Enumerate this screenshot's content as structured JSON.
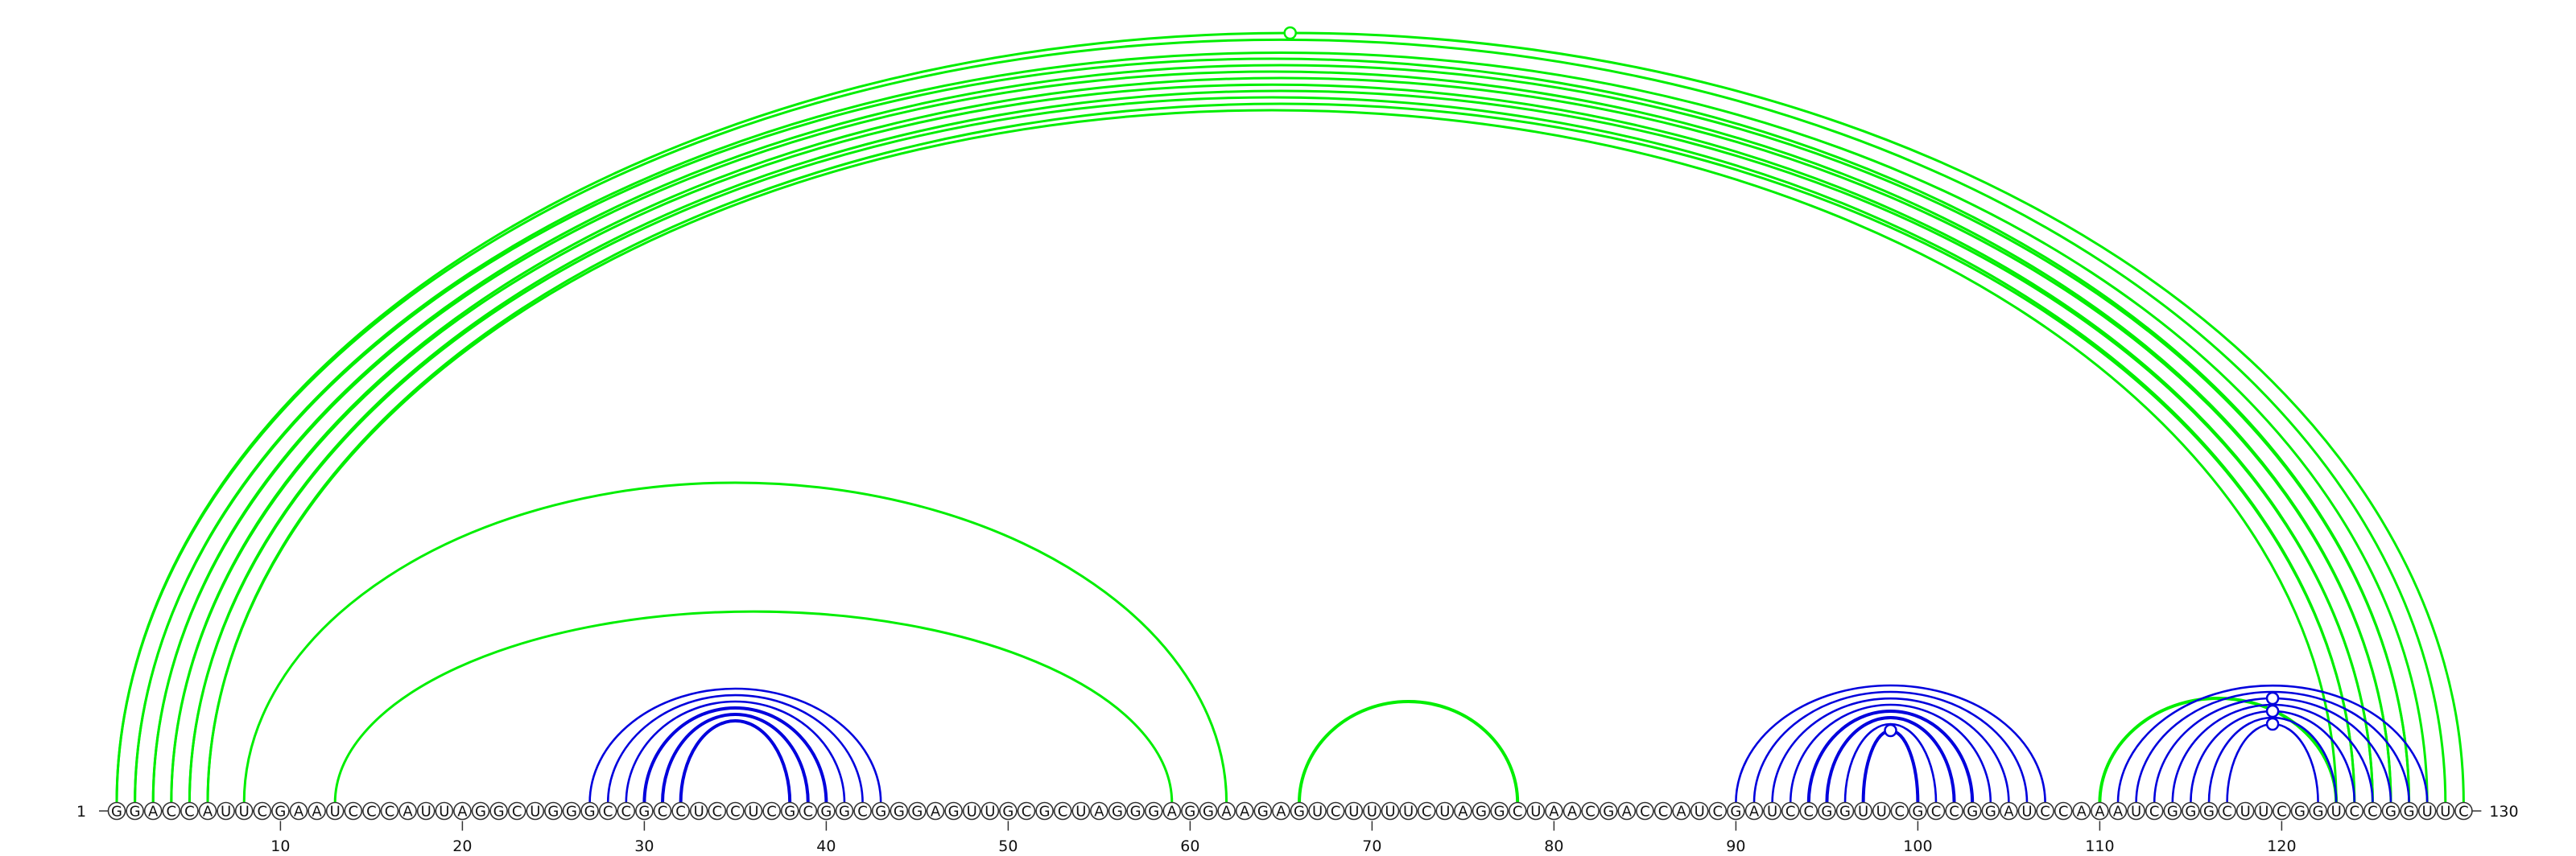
{
  "sequence": "GGACCAUUCGAAUCCCAUUAGGCUGGGCCGCCUCCUCGCGGCGGGAGUUGCGCUAGGGAGGAAGAGUCUUUUCUAGGCUAACGACCAUCGAUCCGGUUCGCCGGAUCCAAAUCGGGCUUCGGUCCGGUUC",
  "start_label": "1",
  "end_label": "130",
  "ticks": [
    "10",
    "20",
    "30",
    "40",
    "50",
    "60",
    "70",
    "80",
    "90",
    "100",
    "110",
    "120"
  ],
  "colors": {
    "green": "#00ee00",
    "blue": "#0000dd",
    "outline": "#333333"
  },
  "chart_data": {
    "type": "arc-diagram",
    "length": 130,
    "green_pairs": [
      [
        1,
        129
      ],
      [
        2,
        128
      ],
      [
        3,
        127
      ],
      [
        4,
        126
      ],
      [
        5,
        125
      ],
      [
        6,
        124
      ],
      [
        8,
        62
      ],
      [
        13,
        59
      ],
      [
        66,
        78
      ],
      [
        110,
        123
      ],
      [
        1,
        130
      ],
      [
        2,
        127
      ],
      [
        3,
        126
      ],
      [
        4,
        125
      ],
      [
        5,
        124
      ],
      [
        6,
        123
      ]
    ],
    "blue_pairs": [
      [
        27,
        43
      ],
      [
        28,
        42
      ],
      [
        29,
        41
      ],
      [
        30,
        40
      ],
      [
        31,
        39
      ],
      [
        32,
        38
      ],
      [
        90,
        107
      ],
      [
        91,
        106
      ],
      [
        92,
        105
      ],
      [
        93,
        104
      ],
      [
        94,
        103
      ],
      [
        95,
        102
      ],
      [
        96,
        101
      ],
      [
        97,
        100
      ],
      [
        111,
        128
      ],
      [
        112,
        127
      ],
      [
        113,
        126
      ],
      [
        114,
        125
      ],
      [
        115,
        124
      ],
      [
        116,
        123
      ],
      [
        117,
        122
      ]
    ],
    "blue_double_pairs": [
      [
        30,
        40
      ],
      [
        31,
        39
      ],
      [
        32,
        38
      ],
      [
        94,
        103
      ],
      [
        95,
        102
      ],
      [
        97,
        100
      ]
    ],
    "green_double_pairs": [
      [
        66,
        78
      ],
      [
        110,
        123
      ]
    ],
    "markers": [
      {
        "color": "green",
        "position": 65.5,
        "arc": [
          1,
          130
        ]
      },
      {
        "color": "blue",
        "position": 98.5,
        "arc": [
          97,
          100
        ]
      },
      {
        "color": "blue",
        "position": 119.5,
        "arc": [
          117,
          122
        ]
      },
      {
        "color": "blue",
        "position": 119.5,
        "arc": [
          115,
          124
        ]
      },
      {
        "color": "blue",
        "position": 119.5,
        "arc": [
          113,
          126
        ]
      }
    ]
  }
}
